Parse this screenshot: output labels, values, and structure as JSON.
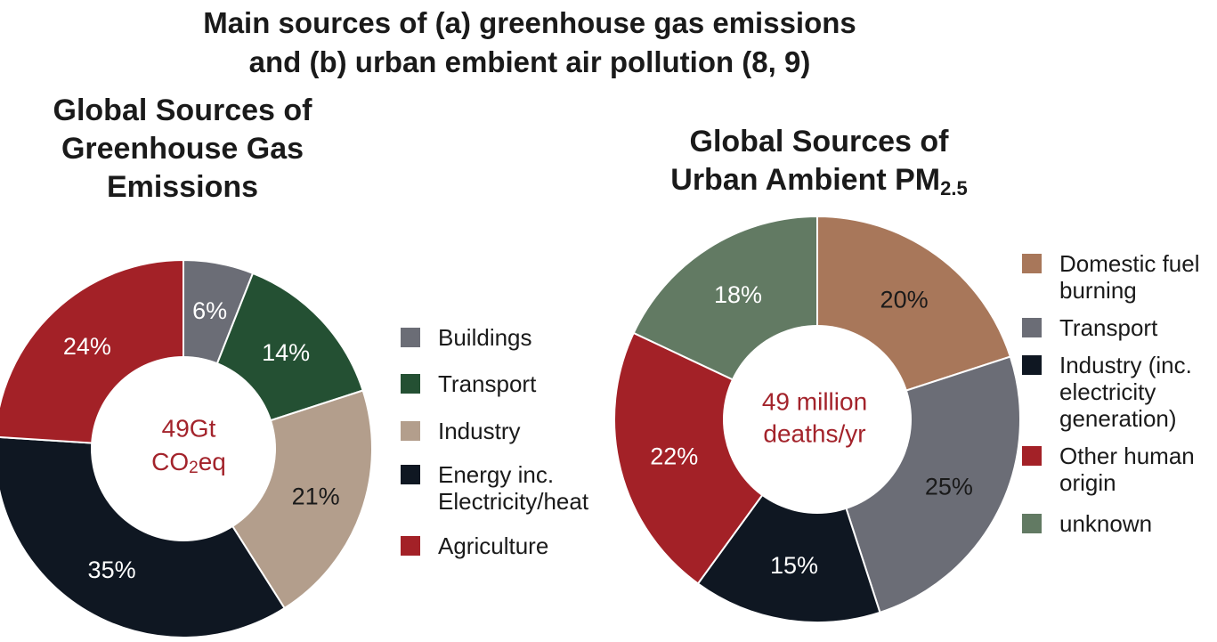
{
  "figure": {
    "title_line1": "Main sources of (a) greenhouse gas emissions",
    "title_line2": "and (b) urban embient air pollution (8, 9)"
  },
  "chart_data": [
    {
      "type": "pie",
      "donut": true,
      "title_lines": [
        "Global Sources of",
        "Greenhouse Gas",
        "Emissions"
      ],
      "center_label_lines": [
        "49Gt",
        "CO",
        "2",
        "eq"
      ],
      "legend_placement": "right",
      "slices": [
        {
          "name": "Buildings",
          "legend_lines": [
            "Buildings"
          ],
          "value": 6,
          "label": "6%",
          "color": "#6b6d76",
          "label_color": "#ffffff"
        },
        {
          "name": "Transport",
          "legend_lines": [
            "Transport"
          ],
          "value": 14,
          "label": "14%",
          "color": "#245033",
          "label_color": "#ffffff"
        },
        {
          "name": "Industry",
          "legend_lines": [
            "Industry"
          ],
          "value": 21,
          "label": "21%",
          "color": "#b39e8c",
          "label_color": "#1a1a1a"
        },
        {
          "name": "Energy inc. Electricity/heat",
          "legend_lines": [
            "Energy inc.",
            "Electricity/heat"
          ],
          "value": 35,
          "label": "35%",
          "color": "#0f1722",
          "label_color": "#ffffff"
        },
        {
          "name": "Agriculture",
          "legend_lines": [
            "Agriculture"
          ],
          "value": 24,
          "label": "24%",
          "color": "#a32127",
          "label_color": "#ffffff"
        }
      ]
    },
    {
      "type": "pie",
      "donut": true,
      "title_lines": [
        "Global Sources of",
        "Urban Ambient PM",
        "2.5"
      ],
      "center_label_lines": [
        "49 million",
        "deaths/yr"
      ],
      "legend_placement": "right",
      "slices": [
        {
          "name": "Domestic fuel burning",
          "legend_lines": [
            "Domestic fuel",
            "burning"
          ],
          "value": 20,
          "label": "20%",
          "color": "#a8775a",
          "label_color": "#1a1a1a"
        },
        {
          "name": "Transport",
          "legend_lines": [
            "Transport"
          ],
          "value": 25,
          "label": "25%",
          "color": "#6b6d76",
          "label_color": "#1a1a1a"
        },
        {
          "name": "Industry (inc. electricity generation)",
          "legend_lines": [
            "Industry (inc.",
            "electricity",
            "generation)"
          ],
          "value": 15,
          "label": "15%",
          "color": "#0f1722",
          "label_color": "#ffffff"
        },
        {
          "name": "Other human origin",
          "legend_lines": [
            "Other human",
            "origin"
          ],
          "value": 22,
          "label": "22%",
          "color": "#a32127",
          "label_color": "#ffffff"
        },
        {
          "name": "unknown",
          "legend_lines": [
            "unknown"
          ],
          "value": 18,
          "label": "18%",
          "color": "#627a63",
          "label_color": "#ffffff"
        }
      ]
    }
  ]
}
